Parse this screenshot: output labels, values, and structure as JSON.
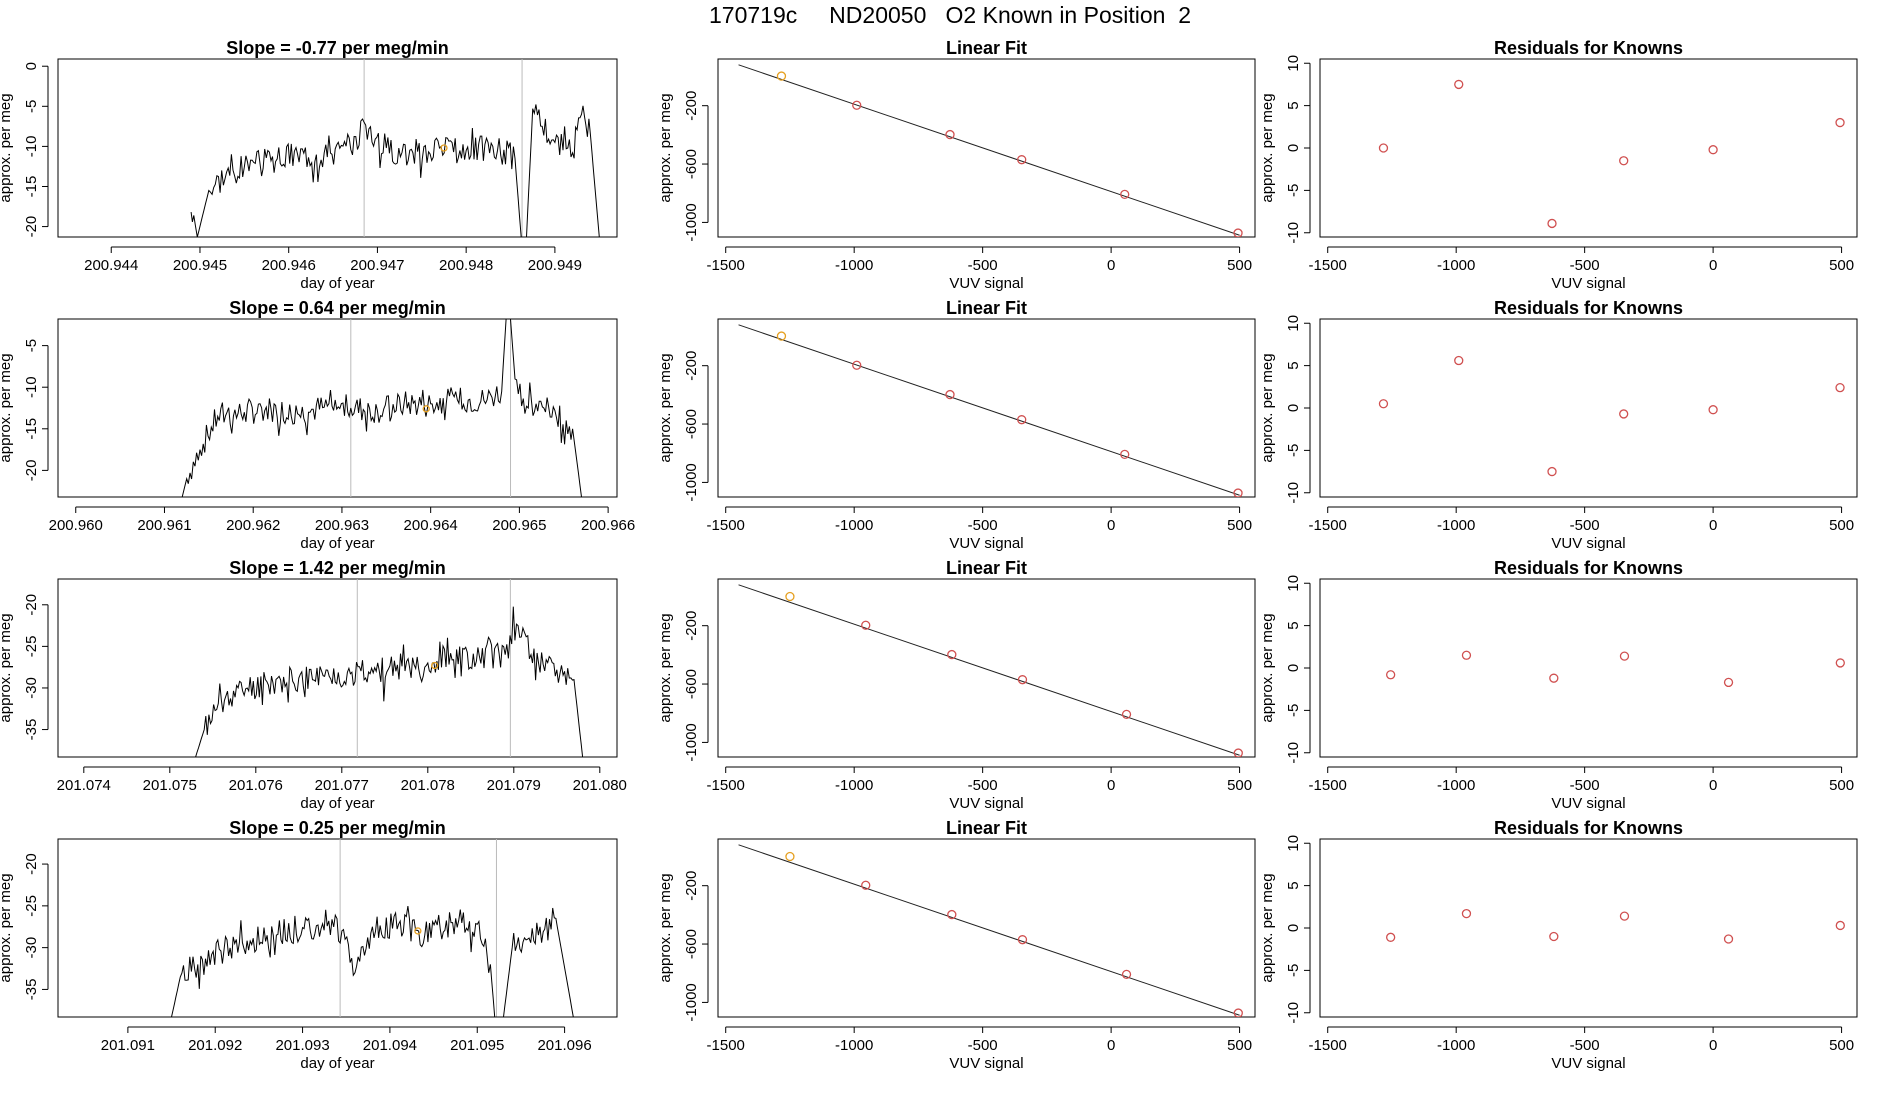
{
  "title": "170719c     ND20050   O2 Known in Position  2",
  "chart_data": [
    {
      "type": "line",
      "title": "Slope =  -0.77  per meg/min",
      "xlabel": "day of year",
      "ylabel": "approx. per meg",
      "xlim": [
        200.9434,
        200.9497
      ],
      "ylim": [
        -21.3,
        0.9
      ],
      "xticks": [
        "200.944",
        "200.945",
        "200.946",
        "200.947",
        "200.948",
        "200.949"
      ],
      "yticks": [
        "0",
        "-5",
        "-10",
        "-15",
        "-20"
      ],
      "vlines": [
        200.94685,
        200.94863
      ],
      "marker": [
        200.94775,
        -10.2
      ],
      "marker_color": "#e6a020",
      "start": [
        200.9449,
        -18.2
      ],
      "end": [
        200.9495,
        -21.3
      ],
      "noise": 1.8,
      "seed": 3,
      "points": [
        [
          200.9449,
          -18.2
        ],
        [
          200.94493,
          -18.6
        ],
        [
          200.94497,
          -21.3
        ],
        [
          200.9451,
          -15.5
        ],
        [
          200.9453,
          -13.2
        ],
        [
          200.9455,
          -12.6
        ],
        [
          200.9458,
          -11.8
        ],
        [
          200.9461,
          -11.0
        ],
        [
          200.9464,
          -10.8
        ],
        [
          200.9467,
          -10.4
        ],
        [
          200.94685,
          -7.0
        ],
        [
          200.9471,
          -10.2
        ],
        [
          200.9474,
          -10.8
        ],
        [
          200.9477,
          -10.2
        ],
        [
          200.948,
          -10.5
        ],
        [
          200.9483,
          -10.0
        ],
        [
          200.94855,
          -11.5
        ],
        [
          200.94862,
          -21.3
        ],
        [
          200.94868,
          -21.3
        ],
        [
          200.94875,
          -5.3
        ],
        [
          200.949,
          -9.5
        ],
        [
          200.9492,
          -10.8
        ],
        [
          200.9493,
          -6.0
        ],
        [
          200.9494,
          -8.5
        ],
        [
          200.9495,
          -21.3
        ]
      ]
    },
    {
      "type": "scatter",
      "title": "Linear Fit",
      "xlabel": "VUV signal",
      "ylabel": "approx. per meg",
      "xlim": [
        -1530,
        560
      ],
      "ylim": [
        -1100,
        120
      ],
      "xticks": [
        "-1500",
        "-1000",
        "-500",
        "0",
        "500"
      ],
      "yticks": [
        "-200",
        "-600",
        "-1000"
      ],
      "fit": [
        [
          -1450,
          80
        ],
        [
          500,
          -1088
        ]
      ],
      "x": [
        -1283,
        -990,
        -627,
        -348,
        53,
        494
      ],
      "y": [
        3,
        -197,
        -398,
        -570,
        -808,
        -1073
      ],
      "colors": [
        "#e6a020",
        "#d05050",
        "#d05050",
        "#d05050",
        "#d05050",
        "#d05050"
      ]
    },
    {
      "type": "scatter",
      "title": "Residuals for Knowns",
      "xlabel": "VUV signal",
      "ylabel": "approx. per meg",
      "xlim": [
        -1530,
        560
      ],
      "ylim": [
        -10.5,
        10.5
      ],
      "xticks": [
        "-1500",
        "-1000",
        "-500",
        "0",
        "500"
      ],
      "yticks": [
        "10",
        "5",
        "0",
        "-5",
        "-10"
      ],
      "x": [
        -1283,
        -990,
        -627,
        -348,
        0,
        494
      ],
      "y": [
        0.0,
        7.5,
        -8.9,
        -1.5,
        -0.2,
        3.0
      ],
      "colors": [
        "#d05050",
        "#d05050",
        "#d05050",
        "#d05050",
        "#d05050",
        "#d05050"
      ]
    },
    {
      "type": "line",
      "title": "Slope =  0.64  per meg/min",
      "xlabel": "day of year",
      "ylabel": "approx. per meg",
      "xlim": [
        200.9598,
        200.9661
      ],
      "ylim": [
        -23.2,
        -1.8
      ],
      "xticks": [
        "200.960",
        "200.961",
        "200.962",
        "200.963",
        "200.964",
        "200.965",
        "200.966"
      ],
      "yticks": [
        "-5",
        "-10",
        "-15",
        "-20"
      ],
      "vlines": [
        200.9631,
        200.9649
      ],
      "marker": [
        200.96395,
        -12.6
      ],
      "marker_color": "#e6a020",
      "start": [
        200.9612,
        -23.2
      ],
      "end": [
        200.9657,
        -23.2
      ],
      "noise": 1.6,
      "seed": 7,
      "points": [
        [
          200.9612,
          -23.2
        ],
        [
          200.96125,
          -21.0
        ],
        [
          200.9614,
          -17.5
        ],
        [
          200.9616,
          -13.5
        ],
        [
          200.9619,
          -13.0
        ],
        [
          200.9622,
          -12.6
        ],
        [
          200.9625,
          -13.2
        ],
        [
          200.9628,
          -12.4
        ],
        [
          200.9631,
          -12.5
        ],
        [
          200.9634,
          -12.8
        ],
        [
          200.9637,
          -12.0
        ],
        [
          200.964,
          -12.0
        ],
        [
          200.9643,
          -11.5
        ],
        [
          200.9646,
          -11.6
        ],
        [
          200.9648,
          -10.5
        ],
        [
          200.96485,
          -1.8
        ],
        [
          200.9649,
          -1.8
        ],
        [
          200.96495,
          -9.0
        ],
        [
          200.9651,
          -12.5
        ],
        [
          200.9654,
          -12.8
        ],
        [
          200.9656,
          -15.0
        ],
        [
          200.9657,
          -23.2
        ]
      ]
    },
    {
      "type": "scatter",
      "title": "Linear Fit",
      "xlabel": "VUV signal",
      "ylabel": "approx. per meg",
      "xlim": [
        -1530,
        560
      ],
      "ylim": [
        -1100,
        120
      ],
      "xticks": [
        "-1500",
        "-1000",
        "-500",
        "0",
        "500"
      ],
      "yticks": [
        "-200",
        "-600",
        "-1000"
      ],
      "fit": [
        [
          -1450,
          80
        ],
        [
          500,
          -1088
        ]
      ],
      "x": [
        -1283,
        -990,
        -627,
        -348,
        53,
        494
      ],
      "y": [
        3,
        -197,
        -398,
        -570,
        -808,
        -1073
      ],
      "colors": [
        "#e6a020",
        "#d05050",
        "#d05050",
        "#d05050",
        "#d05050",
        "#d05050"
      ]
    },
    {
      "type": "scatter",
      "title": "Residuals for Knowns",
      "xlabel": "VUV signal",
      "ylabel": "approx. per meg",
      "xlim": [
        -1530,
        560
      ],
      "ylim": [
        -10.5,
        10.5
      ],
      "xticks": [
        "-1500",
        "-1000",
        "-500",
        "0",
        "500"
      ],
      "yticks": [
        "10",
        "5",
        "0",
        "-5",
        "-10"
      ],
      "x": [
        -1283,
        -990,
        -627,
        -348,
        0,
        494
      ],
      "y": [
        0.5,
        5.6,
        -7.5,
        -0.7,
        -0.2,
        2.4
      ],
      "colors": [
        "#d05050",
        "#d05050",
        "#d05050",
        "#d05050",
        "#d05050",
        "#d05050"
      ]
    },
    {
      "type": "line",
      "title": "Slope =  1.42  per meg/min",
      "xlabel": "day of year",
      "ylabel": "approx. per meg",
      "xlim": [
        201.0737,
        201.0802
      ],
      "ylim": [
        -38.3,
        -16.9
      ],
      "xticks": [
        "201.074",
        "201.075",
        "201.076",
        "201.077",
        "201.078",
        "201.079",
        "201.080"
      ],
      "yticks": [
        "-20",
        "-25",
        "-30",
        "-35"
      ],
      "vlines": [
        201.07718,
        201.07896
      ],
      "marker": [
        201.07808,
        -27.3
      ],
      "marker_color": "#e6a020",
      "start": [
        201.0753,
        -38.3
      ],
      "end": [
        201.0798,
        -38.3
      ],
      "noise": 1.6,
      "seed": 11,
      "points": [
        [
          201.0753,
          -38.3
        ],
        [
          201.0754,
          -35.0
        ],
        [
          201.0756,
          -31.5
        ],
        [
          201.0759,
          -30.0
        ],
        [
          201.0762,
          -29.4
        ],
        [
          201.0765,
          -28.8
        ],
        [
          201.0768,
          -28.6
        ],
        [
          201.0771,
          -28.3
        ],
        [
          201.0774,
          -28.0
        ],
        [
          201.0777,
          -27.4
        ],
        [
          201.078,
          -27.0
        ],
        [
          201.0783,
          -26.6
        ],
        [
          201.0786,
          -26.2
        ],
        [
          201.0789,
          -26.0
        ],
        [
          201.07905,
          -22.5
        ],
        [
          201.0792,
          -26.0
        ],
        [
          201.0795,
          -27.8
        ],
        [
          201.0797,
          -29.0
        ],
        [
          201.0798,
          -38.3
        ]
      ]
    },
    {
      "type": "scatter",
      "title": "Linear Fit",
      "xlabel": "VUV signal",
      "ylabel": "approx. per meg",
      "xlim": [
        -1530,
        560
      ],
      "ylim": [
        -1100,
        120
      ],
      "xticks": [
        "-1500",
        "-1000",
        "-500",
        "0",
        "500"
      ],
      "yticks": [
        "-200",
        "-600",
        "-1000"
      ],
      "fit": [
        [
          -1450,
          80
        ],
        [
          500,
          -1088
        ]
      ],
      "x": [
        -1250,
        -955,
        -620,
        -345,
        60,
        495
      ],
      "y": [
        0,
        -197,
        -398,
        -570,
        -808,
        -1073
      ],
      "colors": [
        "#e6a020",
        "#d05050",
        "#d05050",
        "#d05050",
        "#d05050",
        "#d05050"
      ]
    },
    {
      "type": "scatter",
      "title": "Residuals for Knowns",
      "xlabel": "VUV signal",
      "ylabel": "approx. per meg",
      "xlim": [
        -1530,
        560
      ],
      "ylim": [
        -10.5,
        10.5
      ],
      "xticks": [
        "-1500",
        "-1000",
        "-500",
        "0",
        "500"
      ],
      "yticks": [
        "10",
        "5",
        "0",
        "-5",
        "-10"
      ],
      "x": [
        -1255,
        -960,
        -620,
        -345,
        60,
        495
      ],
      "y": [
        -0.8,
        1.5,
        -1.2,
        1.4,
        -1.7,
        0.6
      ],
      "colors": [
        "#d05050",
        "#d05050",
        "#d05050",
        "#d05050",
        "#d05050",
        "#d05050"
      ]
    },
    {
      "type": "line",
      "title": "Slope =  0.25  per meg/min",
      "xlabel": "day of year",
      "ylabel": "approx. per meg",
      "xlim": [
        201.0902,
        201.0966
      ],
      "ylim": [
        -38.3,
        -17.0
      ],
      "xticks": [
        "201.091",
        "201.092",
        "201.093",
        "201.094",
        "201.095",
        "201.096"
      ],
      "yticks": [
        "-20",
        "-25",
        "-30",
        "-35"
      ],
      "vlines": [
        201.09343,
        201.09522
      ],
      "marker": [
        201.09432,
        -28.0
      ],
      "marker_color": "#e6a020",
      "start": [
        201.0915,
        -38.3
      ],
      "end": [
        201.0961,
        -38.3
      ],
      "noise": 1.7,
      "seed": 19,
      "points": [
        [
          201.0915,
          -38.3
        ],
        [
          201.0916,
          -33.5
        ],
        [
          201.0918,
          -32.0
        ],
        [
          201.0921,
          -30.3
        ],
        [
          201.0924,
          -29.2
        ],
        [
          201.0927,
          -28.5
        ],
        [
          201.093,
          -27.6
        ],
        [
          201.0933,
          -26.8
        ],
        [
          201.09345,
          -28.0
        ],
        [
          201.0936,
          -33.0
        ],
        [
          201.0938,
          -27.5
        ],
        [
          201.0941,
          -27.2
        ],
        [
          201.0944,
          -28.5
        ],
        [
          201.0947,
          -27.0
        ],
        [
          201.095,
          -27.2
        ],
        [
          201.09515,
          -32.0
        ],
        [
          201.0952,
          -38.3
        ],
        [
          201.0953,
          -38.3
        ],
        [
          201.0954,
          -30.0
        ],
        [
          201.0957,
          -28.5
        ],
        [
          201.0959,
          -26.5
        ],
        [
          201.0961,
          -38.3
        ]
      ]
    },
    {
      "type": "scatter",
      "title": "Linear Fit",
      "xlabel": "VUV signal",
      "ylabel": "approx. per meg",
      "xlim": [
        -1530,
        560
      ],
      "ylim": [
        -1100,
        120
      ],
      "xticks": [
        "-1500",
        "-1000",
        "-500",
        "0",
        "500"
      ],
      "yticks": [
        "-200",
        "-600",
        "-1000"
      ],
      "fit": [
        [
          -1450,
          80
        ],
        [
          500,
          -1088
        ]
      ],
      "x": [
        -1250,
        -955,
        -620,
        -345,
        60,
        495
      ],
      "y": [
        0,
        -197,
        -398,
        -570,
        -808,
        -1073
      ],
      "colors": [
        "#e6a020",
        "#d05050",
        "#d05050",
        "#d05050",
        "#d05050",
        "#d05050"
      ]
    },
    {
      "type": "scatter",
      "title": "Residuals for Knowns",
      "xlabel": "VUV signal",
      "ylabel": "approx. per meg",
      "xlim": [
        -1530,
        560
      ],
      "ylim": [
        -10.5,
        10.5
      ],
      "xticks": [
        "-1500",
        "-1000",
        "-500",
        "0",
        "500"
      ],
      "yticks": [
        "10",
        "5",
        "0",
        "-5",
        "-10"
      ],
      "x": [
        -1255,
        -960,
        -620,
        -345,
        60,
        495
      ],
      "y": [
        -1.1,
        1.7,
        -1.0,
        1.4,
        -1.3,
        0.3
      ],
      "colors": [
        "#d05050",
        "#d05050",
        "#d05050",
        "#d05050",
        "#d05050",
        "#d05050"
      ]
    }
  ]
}
